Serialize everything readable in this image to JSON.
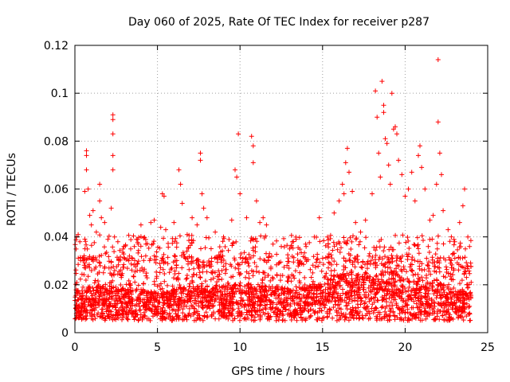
{
  "chart_data": {
    "type": "scatter",
    "title": "Day 060 of 2025, Rate Of TEC Index for receiver p287",
    "xlabel": "GPS time / hours",
    "ylabel": "ROTI / TECUs",
    "xlim": [
      0,
      25
    ],
    "ylim": [
      0,
      0.12
    ],
    "xticks": [
      0,
      5,
      10,
      15,
      20,
      25
    ],
    "yticks": [
      0,
      0.02,
      0.04,
      0.06,
      0.08,
      0.1,
      0.12
    ],
    "xtick_labels": [
      "0",
      "5",
      "10",
      "15",
      "20",
      "25"
    ],
    "ytick_labels": [
      "0",
      "0.02",
      "0.04",
      "0.06",
      "0.08",
      "0.1",
      "0.12"
    ],
    "grid": true,
    "marker": "+",
    "colors": {
      "points": "#ff0000",
      "frame": "#000000",
      "grid": "#a0a0a0"
    },
    "series": [
      {
        "name": "ROTI",
        "points": [
          [
            0.1,
            0.04
          ],
          [
            0.2,
            0.041
          ],
          [
            0.3,
            0.038
          ],
          [
            0.5,
            0.03
          ],
          [
            0.6,
            0.059
          ],
          [
            0.7,
            0.076
          ],
          [
            0.7,
            0.074
          ],
          [
            0.7,
            0.068
          ],
          [
            0.8,
            0.06
          ],
          [
            0.9,
            0.049
          ],
          [
            1.0,
            0.045
          ],
          [
            1.1,
            0.051
          ],
          [
            1.3,
            0.042
          ],
          [
            1.5,
            0.062
          ],
          [
            1.5,
            0.055
          ],
          [
            1.6,
            0.048
          ],
          [
            1.8,
            0.046
          ],
          [
            2.0,
            0.039
          ],
          [
            2.2,
            0.052
          ],
          [
            2.3,
            0.091
          ],
          [
            2.3,
            0.089
          ],
          [
            2.3,
            0.083
          ],
          [
            2.3,
            0.074
          ],
          [
            2.3,
            0.068
          ],
          [
            2.4,
            0.04
          ],
          [
            2.6,
            0.038
          ],
          [
            3.0,
            0.031
          ],
          [
            3.3,
            0.032
          ],
          [
            3.6,
            0.036
          ],
          [
            3.8,
            0.039
          ],
          [
            4.0,
            0.045
          ],
          [
            4.3,
            0.037
          ],
          [
            4.6,
            0.046
          ],
          [
            4.8,
            0.047
          ],
          [
            5.2,
            0.044
          ],
          [
            5.3,
            0.058
          ],
          [
            5.4,
            0.057
          ],
          [
            5.5,
            0.043
          ],
          [
            6.0,
            0.046
          ],
          [
            6.3,
            0.068
          ],
          [
            6.4,
            0.062
          ],
          [
            6.5,
            0.054
          ],
          [
            6.8,
            0.041
          ],
          [
            7.1,
            0.048
          ],
          [
            7.4,
            0.045
          ],
          [
            7.6,
            0.075
          ],
          [
            7.6,
            0.072
          ],
          [
            7.7,
            0.058
          ],
          [
            7.8,
            0.052
          ],
          [
            8.0,
            0.048
          ],
          [
            8.5,
            0.042
          ],
          [
            9.0,
            0.04
          ],
          [
            9.5,
            0.047
          ],
          [
            9.7,
            0.068
          ],
          [
            9.8,
            0.065
          ],
          [
            9.9,
            0.083
          ],
          [
            10.0,
            0.058
          ],
          [
            10.4,
            0.048
          ],
          [
            10.7,
            0.082
          ],
          [
            10.8,
            0.078
          ],
          [
            10.8,
            0.071
          ],
          [
            11.0,
            0.055
          ],
          [
            11.2,
            0.046
          ],
          [
            11.4,
            0.048
          ],
          [
            11.6,
            0.045
          ],
          [
            12.0,
            0.037
          ],
          [
            12.5,
            0.036
          ],
          [
            13.0,
            0.035
          ],
          [
            13.4,
            0.039
          ],
          [
            14.0,
            0.036
          ],
          [
            14.5,
            0.04
          ],
          [
            14.8,
            0.048
          ],
          [
            15.3,
            0.04
          ],
          [
            15.7,
            0.05
          ],
          [
            16.0,
            0.055
          ],
          [
            16.2,
            0.062
          ],
          [
            16.3,
            0.058
          ],
          [
            16.4,
            0.071
          ],
          [
            16.5,
            0.077
          ],
          [
            16.6,
            0.067
          ],
          [
            16.8,
            0.059
          ],
          [
            17.0,
            0.046
          ],
          [
            17.3,
            0.042
          ],
          [
            17.6,
            0.047
          ],
          [
            18.0,
            0.058
          ],
          [
            18.2,
            0.101
          ],
          [
            18.3,
            0.09
          ],
          [
            18.4,
            0.075
          ],
          [
            18.5,
            0.065
          ],
          [
            18.6,
            0.105
          ],
          [
            18.7,
            0.095
          ],
          [
            18.7,
            0.092
          ],
          [
            18.8,
            0.081
          ],
          [
            18.9,
            0.079
          ],
          [
            19.0,
            0.07
          ],
          [
            19.1,
            0.062
          ],
          [
            19.2,
            0.1
          ],
          [
            19.3,
            0.085
          ],
          [
            19.4,
            0.086
          ],
          [
            19.5,
            0.083
          ],
          [
            19.6,
            0.072
          ],
          [
            19.8,
            0.066
          ],
          [
            20.0,
            0.057
          ],
          [
            20.2,
            0.06
          ],
          [
            20.4,
            0.067
          ],
          [
            20.6,
            0.055
          ],
          [
            20.8,
            0.074
          ],
          [
            20.9,
            0.078
          ],
          [
            21.0,
            0.069
          ],
          [
            21.2,
            0.06
          ],
          [
            21.5,
            0.047
          ],
          [
            21.7,
            0.049
          ],
          [
            21.9,
            0.062
          ],
          [
            22.0,
            0.114
          ],
          [
            22.0,
            0.088
          ],
          [
            22.1,
            0.075
          ],
          [
            22.2,
            0.066
          ],
          [
            22.3,
            0.051
          ],
          [
            22.6,
            0.043
          ],
          [
            23.0,
            0.038
          ],
          [
            23.3,
            0.046
          ],
          [
            23.5,
            0.053
          ],
          [
            23.6,
            0.06
          ],
          [
            23.8,
            0.04
          ],
          [
            23.9,
            0.036
          ],
          [
            24.0,
            0.021
          ]
        ],
        "bulk_band": {
          "x_range": [
            0,
            24
          ],
          "baseline": [
            [
              0,
              0.012
            ],
            [
              1,
              0.014
            ],
            [
              2,
              0.014
            ],
            [
              3,
              0.013
            ],
            [
              4,
              0.013
            ],
            [
              5,
              0.012
            ],
            [
              6,
              0.013
            ],
            [
              7,
              0.014
            ],
            [
              8,
              0.014
            ],
            [
              9,
              0.014
            ],
            [
              10,
              0.015
            ],
            [
              11,
              0.014
            ],
            [
              12,
              0.014
            ],
            [
              13,
              0.013
            ],
            [
              14,
              0.014
            ],
            [
              15,
              0.015
            ],
            [
              16,
              0.018
            ],
            [
              17,
              0.017
            ],
            [
              18,
              0.017
            ],
            [
              19,
              0.019
            ],
            [
              20,
              0.016
            ],
            [
              21,
              0.015
            ],
            [
              22,
              0.015
            ],
            [
              23,
              0.013
            ],
            [
              24,
              0.012
            ]
          ],
          "min_value": 0.005,
          "typical_max": 0.032
        }
      }
    ]
  }
}
